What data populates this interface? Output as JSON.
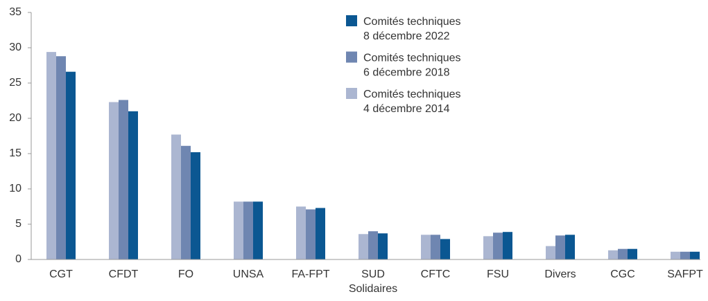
{
  "chart_data": {
    "type": "bar",
    "categories": [
      "CGT",
      "CFDT",
      "FO",
      "UNSA",
      "FA-FPT",
      "SUD\nSolidaires",
      "CFTC",
      "FSU",
      "Divers",
      "CGC",
      "SAFPT"
    ],
    "series": [
      {
        "name": "Comités techniques\n4 décembre 2014",
        "color": "#abb6d1",
        "values": [
          29.4,
          22.3,
          17.7,
          8.2,
          7.5,
          3.6,
          3.5,
          3.3,
          1.9,
          1.3,
          1.1
        ]
      },
      {
        "name": "Comités techniques\n6 décembre 2018",
        "color": "#6f86b1",
        "values": [
          28.8,
          22.6,
          16.1,
          8.2,
          7.1,
          4.0,
          3.5,
          3.8,
          3.4,
          1.5,
          1.1
        ]
      },
      {
        "name": "Comités techniques\n8 décembre 2022",
        "color": "#0b5792",
        "values": [
          26.6,
          21.0,
          15.2,
          8.2,
          7.3,
          3.7,
          2.9,
          3.9,
          3.5,
          1.5,
          1.1
        ]
      }
    ],
    "ylim": [
      0,
      35
    ],
    "yticks": [
      0,
      5,
      10,
      15,
      20,
      25,
      30,
      35
    ],
    "grid": false,
    "legend": "top-center"
  }
}
